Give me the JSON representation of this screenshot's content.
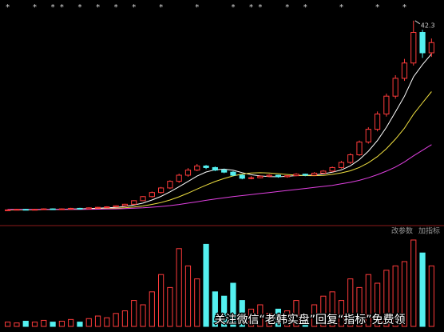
{
  "chart_data": {
    "type": "candlestick",
    "ylim": [
      4,
      44
    ],
    "vlim": [
      0,
      100
    ],
    "up_color": "#ff3b3b",
    "down_color": "#54f0f0",
    "event_marker": "*",
    "events": [
      0,
      3,
      5,
      6,
      8,
      10,
      12,
      14,
      17,
      21,
      25,
      27,
      28,
      31,
      33,
      37,
      41,
      44
    ],
    "max_label_candle": 45,
    "candles": [
      [
        5.1,
        5.3,
        5.0,
        5.2
      ],
      [
        5.2,
        5.4,
        5.1,
        5.3
      ],
      [
        5.3,
        5.4,
        5.1,
        5.2
      ],
      [
        5.2,
        5.4,
        5.1,
        5.3
      ],
      [
        5.3,
        5.5,
        5.2,
        5.4
      ],
      [
        5.4,
        5.5,
        5.2,
        5.3
      ],
      [
        5.3,
        5.5,
        5.2,
        5.4
      ],
      [
        5.4,
        5.6,
        5.3,
        5.5
      ],
      [
        5.5,
        5.6,
        5.3,
        5.4
      ],
      [
        5.4,
        5.7,
        5.3,
        5.6
      ],
      [
        5.6,
        5.8,
        5.5,
        5.7
      ],
      [
        5.7,
        5.9,
        5.6,
        5.8
      ],
      [
        5.8,
        6.1,
        5.7,
        6.0
      ],
      [
        6.0,
        6.4,
        5.9,
        6.3
      ],
      [
        6.3,
        7.1,
        6.2,
        7.0
      ],
      [
        7.0,
        7.9,
        6.9,
        7.8
      ],
      [
        7.8,
        8.8,
        7.6,
        8.6
      ],
      [
        8.6,
        9.7,
        8.4,
        9.5
      ],
      [
        9.5,
        11.0,
        9.3,
        10.8
      ],
      [
        10.8,
        12.3,
        10.5,
        12.0
      ],
      [
        12.0,
        13.4,
        11.7,
        13.0
      ],
      [
        13.0,
        14.2,
        12.8,
        13.8
      ],
      [
        13.8,
        14.0,
        13.2,
        13.5
      ],
      [
        13.5,
        13.7,
        12.8,
        13.0
      ],
      [
        13.0,
        13.3,
        12.4,
        12.6
      ],
      [
        12.6,
        12.8,
        11.8,
        12.0
      ],
      [
        12.0,
        12.2,
        11.2,
        11.4
      ],
      [
        11.4,
        11.8,
        11.2,
        11.5
      ],
      [
        11.5,
        12.0,
        11.4,
        11.8
      ],
      [
        11.8,
        12.2,
        11.6,
        12.0
      ],
      [
        12.0,
        12.1,
        11.5,
        11.7
      ],
      [
        11.7,
        12.0,
        11.5,
        11.9
      ],
      [
        11.9,
        12.4,
        11.8,
        12.2
      ],
      [
        12.2,
        12.3,
        11.8,
        12.0
      ],
      [
        12.0,
        12.6,
        11.9,
        12.4
      ],
      [
        12.4,
        13.0,
        12.3,
        12.8
      ],
      [
        12.8,
        13.7,
        12.6,
        13.5
      ],
      [
        13.5,
        14.8,
        13.3,
        14.5
      ],
      [
        14.5,
        16.3,
        14.2,
        16.0
      ],
      [
        16.0,
        18.8,
        15.8,
        18.5
      ],
      [
        18.5,
        21.4,
        18.2,
        21.0
      ],
      [
        21.0,
        24.5,
        20.6,
        24.0
      ],
      [
        24.0,
        28.0,
        23.5,
        27.5
      ],
      [
        27.5,
        31.6,
        27.0,
        31.0
      ],
      [
        31.0,
        34.8,
        30.5,
        34.0
      ],
      [
        34.0,
        42.3,
        33.5,
        40.0
      ],
      [
        40.0,
        40.5,
        35.0,
        36.0
      ],
      [
        36.0,
        38.8,
        35.2,
        38.0
      ]
    ],
    "volume": [
      5,
      4,
      6,
      5,
      7,
      5,
      6,
      8,
      5,
      9,
      12,
      10,
      15,
      18,
      30,
      25,
      40,
      60,
      45,
      90,
      70,
      55,
      95,
      40,
      35,
      50,
      30,
      20,
      25,
      15,
      20,
      18,
      30,
      12,
      25,
      35,
      40,
      30,
      55,
      45,
      60,
      50,
      65,
      70,
      75,
      100,
      85,
      70
    ],
    "series": [
      {
        "color": "#ffffff",
        "values": [
          5.2,
          5.25,
          5.23,
          5.25,
          5.28,
          5.3,
          5.32,
          5.38,
          5.4,
          5.44,
          5.54,
          5.6,
          5.7,
          5.88,
          6.16,
          6.52,
          7.14,
          7.84,
          8.74,
          9.74,
          10.78,
          11.82,
          12.62,
          13.06,
          13.18,
          12.98,
          12.5,
          12.1,
          11.86,
          11.74,
          11.68,
          11.78,
          11.92,
          11.96,
          12.04,
          12.26,
          12.58,
          13.04,
          13.84,
          15.06,
          16.7,
          18.8,
          21.4,
          24.4,
          27.5,
          31.3,
          33.7,
          35.8
        ]
      },
      {
        "color": "#f0e040",
        "values": [
          5.2,
          5.22,
          5.22,
          5.23,
          5.25,
          5.27,
          5.28,
          5.3,
          5.31,
          5.34,
          5.39,
          5.44,
          5.5,
          5.6,
          5.76,
          5.96,
          6.28,
          6.64,
          7.14,
          7.76,
          8.48,
          9.28,
          10.06,
          10.76,
          11.36,
          11.86,
          12.22,
          12.42,
          12.48,
          12.42,
          12.3,
          12.14,
          12.02,
          11.92,
          11.9,
          11.97,
          12.15,
          12.45,
          12.87,
          13.52,
          14.45,
          15.66,
          17.19,
          19.07,
          21.23,
          23.95,
          26.2,
          28.4
        ]
      },
      {
        "color": "#e040e0",
        "values": [
          5.3,
          5.3,
          5.3,
          5.3,
          5.3,
          5.3,
          5.3,
          5.3,
          5.3,
          5.32,
          5.34,
          5.36,
          5.4,
          5.45,
          5.52,
          5.6,
          5.72,
          5.86,
          6.04,
          6.26,
          6.52,
          6.8,
          7.08,
          7.34,
          7.58,
          7.8,
          8.0,
          8.2,
          8.4,
          8.6,
          8.8,
          9.0,
          9.2,
          9.4,
          9.6,
          9.8,
          10.0,
          10.3,
          10.6,
          11.0,
          11.5,
          12.1,
          12.8,
          13.6,
          14.6,
          15.8,
          16.9,
          18.0
        ]
      }
    ]
  },
  "toolbar": [
    "改参数",
    "加指标"
  ],
  "watermark": "关注微信“老韩实盘”回复“指标”免费领"
}
